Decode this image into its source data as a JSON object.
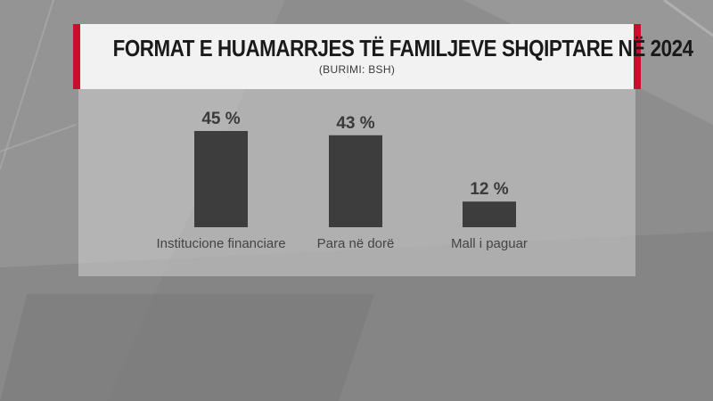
{
  "header": {
    "title": "FORMAT E HUAMARRJES TË FAMILJEVE SHQIPTARE NË 2024",
    "subtitle": "(BURIMI: BSH)"
  },
  "colors": {
    "accent": "#c8102e",
    "bar": "#3d3d3d",
    "title_panel": "#f2f2f2"
  },
  "chart_data": {
    "type": "bar",
    "title": "FORMAT E HUAMARRJES TË FAMILJEVE SHQIPTARE NË 2024",
    "subtitle": "(BURIMI: BSH)",
    "categories": [
      "Institucione financiare",
      "Para në dorë",
      "Mall i paguar"
    ],
    "values": [
      45,
      43,
      12
    ],
    "value_labels": [
      "45 %",
      "43 %",
      "12 %"
    ],
    "unit": "%",
    "ylim": [
      0,
      45
    ],
    "grid": false,
    "legend": "none"
  }
}
